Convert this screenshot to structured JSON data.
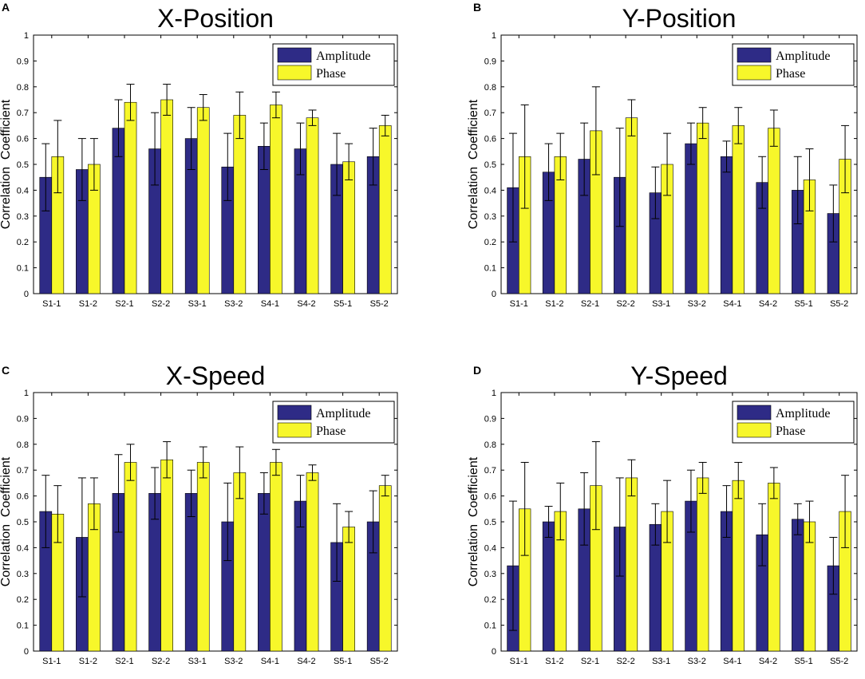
{
  "colors": {
    "amplitude": "#2e2b86",
    "phase": "#f7f72a",
    "axis": "#000000",
    "background": "#ffffff"
  },
  "chart_data": [
    {
      "panel": "A",
      "type": "bar",
      "title": "X-Position",
      "xlabel": "",
      "ylabel": "Correlation  Coefficient",
      "ylim": [
        0,
        1
      ],
      "yticks": [
        "0",
        "0.1",
        "0.2",
        "0.3",
        "0.4",
        "0.5",
        "0.6",
        "0.7",
        "0.8",
        "0.9",
        "1"
      ],
      "grid": false,
      "legend_position": "top-right",
      "categories": [
        "S1-1",
        "S1-2",
        "S2-1",
        "S2-2",
        "S3-1",
        "S3-2",
        "S4-1",
        "S4-2",
        "S5-1",
        "S5-2"
      ],
      "series": [
        {
          "name": "Amplitude",
          "values": [
            0.45,
            0.48,
            0.64,
            0.56,
            0.6,
            0.49,
            0.57,
            0.56,
            0.5,
            0.53
          ],
          "errors": [
            0.13,
            0.12,
            0.11,
            0.14,
            0.12,
            0.13,
            0.09,
            0.1,
            0.12,
            0.11
          ]
        },
        {
          "name": "Phase",
          "values": [
            0.53,
            0.5,
            0.74,
            0.75,
            0.72,
            0.69,
            0.73,
            0.68,
            0.51,
            0.65
          ],
          "errors": [
            0.14,
            0.1,
            0.07,
            0.06,
            0.05,
            0.09,
            0.05,
            0.03,
            0.07,
            0.04
          ]
        }
      ]
    },
    {
      "panel": "B",
      "type": "bar",
      "title": "Y-Position",
      "xlabel": "",
      "ylabel": "Correlation  Coefficient",
      "ylim": [
        0,
        1
      ],
      "yticks": [
        "0",
        "0.1",
        "0.2",
        "0.3",
        "0.4",
        "0.5",
        "0.6",
        "0.7",
        "0.8",
        "0.9",
        "1"
      ],
      "grid": false,
      "legend_position": "top-right",
      "categories": [
        "S1-1",
        "S1-2",
        "S2-1",
        "S2-2",
        "S3-1",
        "S3-2",
        "S4-1",
        "S4-2",
        "S5-1",
        "S5-2"
      ],
      "series": [
        {
          "name": "Amplitude",
          "values": [
            0.41,
            0.47,
            0.52,
            0.45,
            0.39,
            0.58,
            0.53,
            0.43,
            0.4,
            0.31
          ],
          "errors": [
            0.21,
            0.11,
            0.14,
            0.19,
            0.1,
            0.08,
            0.06,
            0.1,
            0.13,
            0.11
          ]
        },
        {
          "name": "Phase",
          "values": [
            0.53,
            0.53,
            0.63,
            0.68,
            0.5,
            0.66,
            0.65,
            0.64,
            0.44,
            0.52
          ],
          "errors": [
            0.2,
            0.09,
            0.17,
            0.07,
            0.12,
            0.06,
            0.07,
            0.07,
            0.12,
            0.13
          ]
        }
      ]
    },
    {
      "panel": "C",
      "type": "bar",
      "title": "X-Speed",
      "xlabel": "",
      "ylabel": "Correlation  Coefficient",
      "ylim": [
        0,
        1
      ],
      "yticks": [
        "0",
        "0.1",
        "0.2",
        "0.3",
        "0.4",
        "0.5",
        "0.6",
        "0.7",
        "0.8",
        "0.9",
        "1"
      ],
      "grid": false,
      "legend_position": "top-right",
      "categories": [
        "S1-1",
        "S1-2",
        "S2-1",
        "S2-2",
        "S3-1",
        "S3-2",
        "S4-1",
        "S4-2",
        "S5-1",
        "S5-2"
      ],
      "series": [
        {
          "name": "Amplitude",
          "values": [
            0.54,
            0.44,
            0.61,
            0.61,
            0.61,
            0.5,
            0.61,
            0.58,
            0.42,
            0.5
          ],
          "errors": [
            0.14,
            0.23,
            0.15,
            0.1,
            0.09,
            0.15,
            0.08,
            0.1,
            0.15,
            0.12
          ]
        },
        {
          "name": "Phase",
          "values": [
            0.53,
            0.57,
            0.73,
            0.74,
            0.73,
            0.69,
            0.73,
            0.69,
            0.48,
            0.64
          ],
          "errors": [
            0.11,
            0.1,
            0.07,
            0.07,
            0.06,
            0.1,
            0.05,
            0.03,
            0.06,
            0.04
          ]
        }
      ]
    },
    {
      "panel": "D",
      "type": "bar",
      "title": "Y-Speed",
      "xlabel": "",
      "ylabel": "Correlation  Coefficient",
      "ylim": [
        0,
        1
      ],
      "yticks": [
        "0",
        "0.1",
        "0.2",
        "0.3",
        "0.4",
        "0.5",
        "0.6",
        "0.7",
        "0.8",
        "0.9",
        "1"
      ],
      "grid": false,
      "legend_position": "top-right",
      "categories": [
        "S1-1",
        "S1-2",
        "S2-1",
        "S2-2",
        "S3-1",
        "S3-2",
        "S4-1",
        "S4-2",
        "S5-1",
        "S5-2"
      ],
      "series": [
        {
          "name": "Amplitude",
          "values": [
            0.33,
            0.5,
            0.55,
            0.48,
            0.49,
            0.58,
            0.54,
            0.45,
            0.51,
            0.33
          ],
          "errors": [
            0.25,
            0.06,
            0.14,
            0.19,
            0.08,
            0.12,
            0.1,
            0.12,
            0.06,
            0.11
          ]
        },
        {
          "name": "Phase",
          "values": [
            0.55,
            0.54,
            0.64,
            0.67,
            0.54,
            0.67,
            0.66,
            0.65,
            0.5,
            0.54
          ],
          "errors": [
            0.18,
            0.11,
            0.17,
            0.07,
            0.12,
            0.06,
            0.07,
            0.06,
            0.08,
            0.14
          ]
        }
      ]
    }
  ]
}
